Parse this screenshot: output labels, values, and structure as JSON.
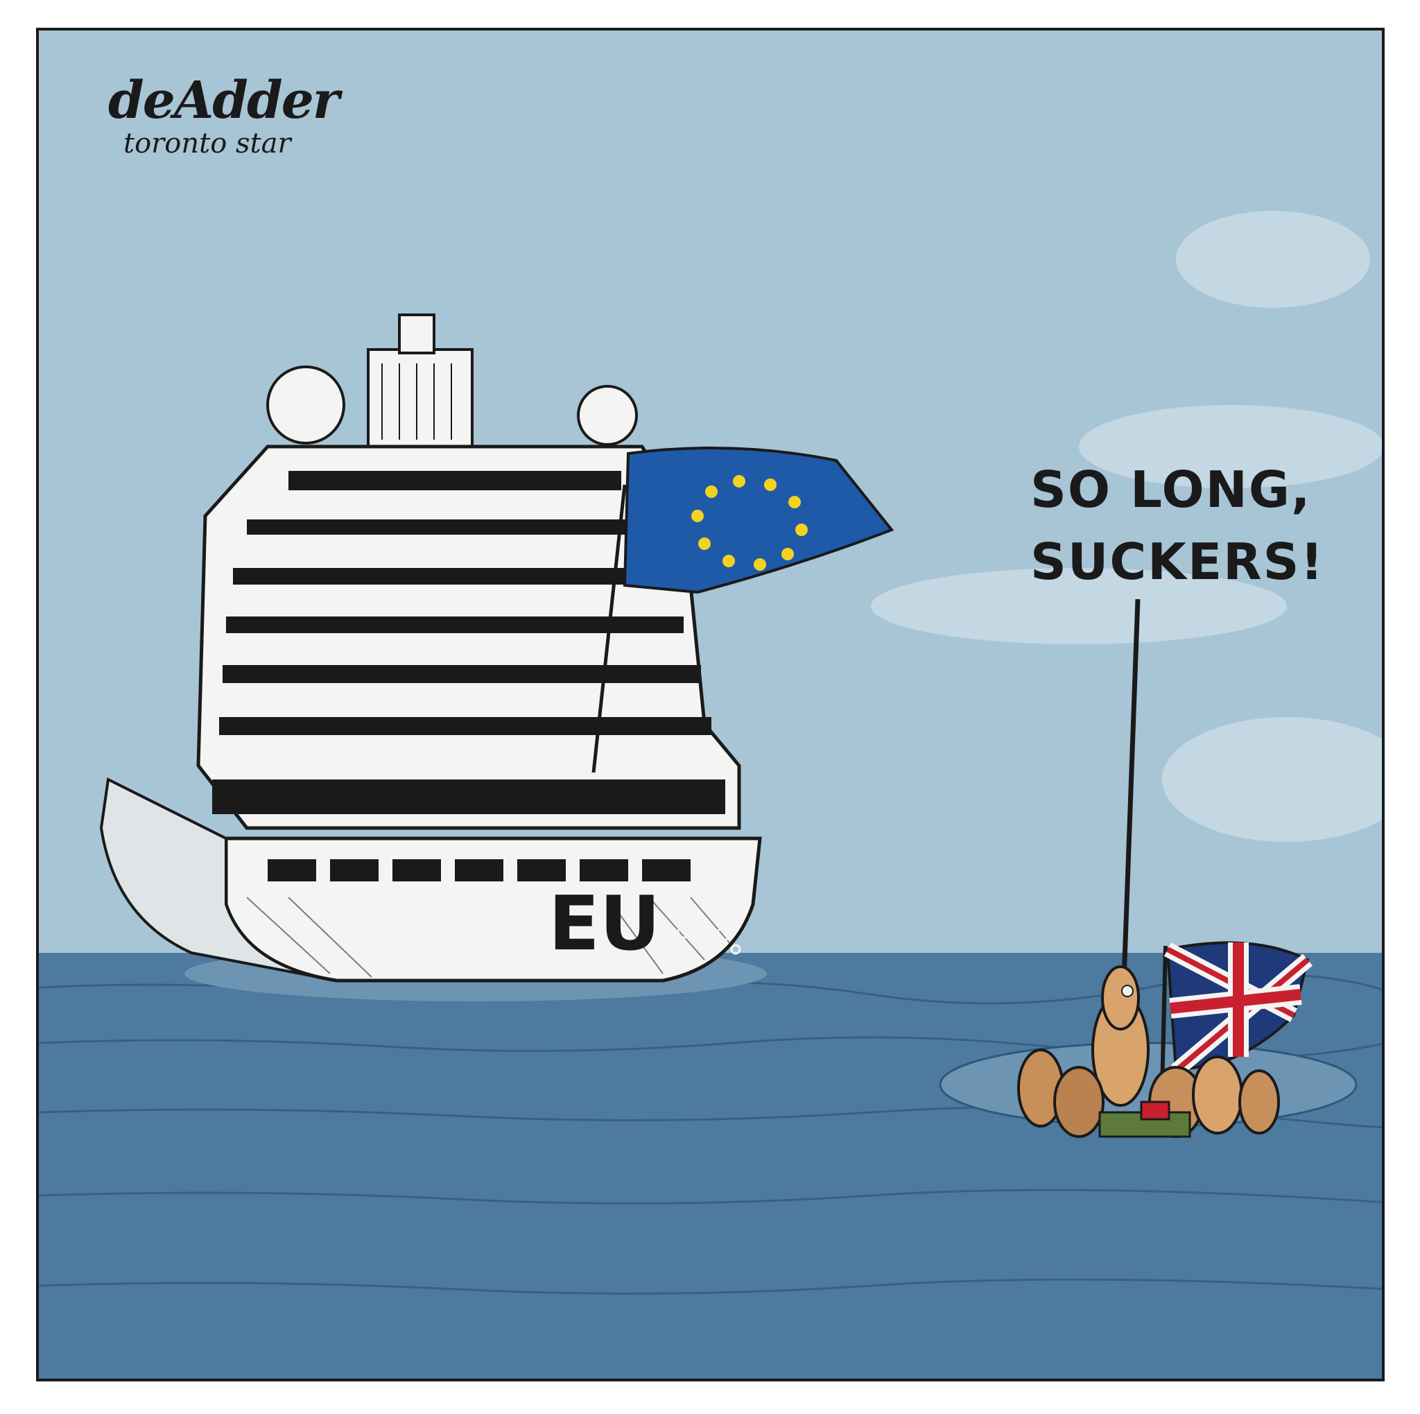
{
  "signature": {
    "name": "deAdder",
    "publication": "toronto star"
  },
  "speech": {
    "line1": "SO LONG,",
    "line2": "SUCKERS!"
  },
  "ship": {
    "hull_label": "EU"
  },
  "colors": {
    "sky": "#a8c5d6",
    "sea": "#4d7a9e",
    "ship_white": "#f4f4f2",
    "ink": "#1a1a1a",
    "eu_blue": "#1f5aa8",
    "eu_star": "#f4d21f",
    "uk_red": "#c8202e",
    "uk_blue": "#1f3a7a"
  },
  "icons": [
    "eu-flag-icon",
    "union-jack-icon"
  ]
}
